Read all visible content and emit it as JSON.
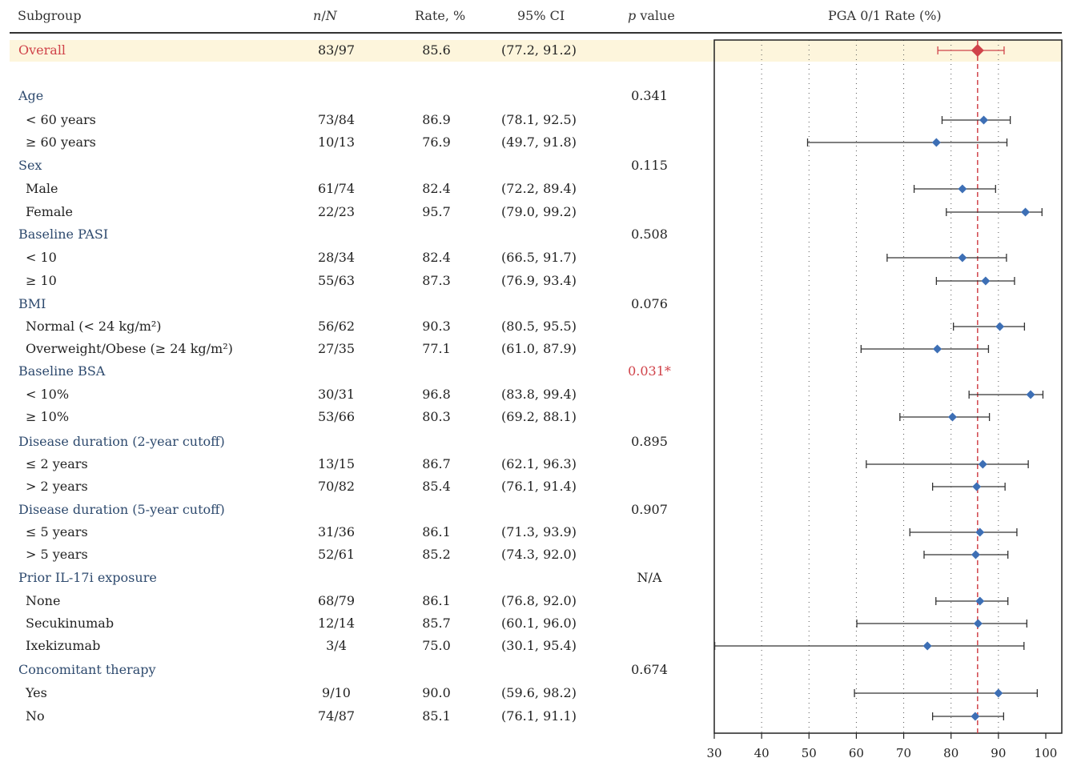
{
  "headers": {
    "subgroup": "Subgroup",
    "n_italic_n": "n",
    "n_slash": "/",
    "n_italic_N": "N",
    "rate": "Rate, %",
    "ci": "95% CI",
    "p_italic": "p",
    "p_rest": " value",
    "plot": "PGA 0/1 Rate (%)"
  },
  "colors": {
    "overall": "#d0434a",
    "marker": "#3d6fb5",
    "reference_line": "#d0434a",
    "group_label": "#2e4a6e",
    "highlight_band": "#fdf5dc"
  },
  "rows": [
    {
      "label": "Overall",
      "kind": "overall",
      "n": "83/97",
      "rate": "85.6",
      "ci": "(77.2, 91.2)",
      "p": "",
      "est": 85.6,
      "lo": 77.2,
      "hi": 91.2
    },
    {
      "label": "Age",
      "kind": "group",
      "p": "0.341"
    },
    {
      "label": "< 60 years",
      "kind": "sub",
      "n": "73/84",
      "rate": "86.9",
      "ci": "(78.1, 92.5)",
      "est": 86.9,
      "lo": 78.1,
      "hi": 92.5
    },
    {
      "label": "≥ 60 years",
      "kind": "sub",
      "n": "10/13",
      "rate": "76.9",
      "ci": "(49.7, 91.8)",
      "est": 76.9,
      "lo": 49.7,
      "hi": 91.8
    },
    {
      "label": "Sex",
      "kind": "group",
      "p": "0.115"
    },
    {
      "label": "Male",
      "kind": "sub",
      "n": "61/74",
      "rate": "82.4",
      "ci": "(72.2, 89.4)",
      "est": 82.4,
      "lo": 72.2,
      "hi": 89.4
    },
    {
      "label": "Female",
      "kind": "sub",
      "n": "22/23",
      "rate": "95.7",
      "ci": "(79.0, 99.2)",
      "est": 95.7,
      "lo": 79.0,
      "hi": 99.2
    },
    {
      "label": "Baseline PASI",
      "kind": "group",
      "p": "0.508"
    },
    {
      "label": "< 10",
      "kind": "sub",
      "n": "28/34",
      "rate": "82.4",
      "ci": "(66.5, 91.7)",
      "est": 82.4,
      "lo": 66.5,
      "hi": 91.7
    },
    {
      "label": "≥ 10",
      "kind": "sub",
      "n": "55/63",
      "rate": "87.3",
      "ci": "(76.9, 93.4)",
      "est": 87.3,
      "lo": 76.9,
      "hi": 93.4
    },
    {
      "label": "BMI",
      "kind": "group",
      "p": "0.076"
    },
    {
      "label": "Normal (< 24 kg/m²)",
      "kind": "sub",
      "n": "56/62",
      "rate": "90.3",
      "ci": "(80.5, 95.5)",
      "est": 90.3,
      "lo": 80.5,
      "hi": 95.5
    },
    {
      "label": "Overweight/Obese (≥ 24 kg/m²)",
      "kind": "sub",
      "n": "27/35",
      "rate": "77.1",
      "ci": "(61.0, 87.9)",
      "est": 77.1,
      "lo": 61.0,
      "hi": 87.9
    },
    {
      "label": "Baseline BSA",
      "kind": "group",
      "p": "0.031*",
      "p_highlight": true
    },
    {
      "label": "< 10%",
      "kind": "sub",
      "n": "30/31",
      "rate": "96.8",
      "ci": "(83.8, 99.4)",
      "est": 96.8,
      "lo": 83.8,
      "hi": 99.4
    },
    {
      "label": "≥ 10%",
      "kind": "sub",
      "n": "53/66",
      "rate": "80.3",
      "ci": "(69.2, 88.1)",
      "est": 80.3,
      "lo": 69.2,
      "hi": 88.1
    },
    {
      "label": "Disease duration (2-year cutoff)",
      "kind": "group",
      "p": "0.895"
    },
    {
      "label": "≤ 2 years",
      "kind": "sub",
      "n": "13/15",
      "rate": "86.7",
      "ci": "(62.1, 96.3)",
      "est": 86.7,
      "lo": 62.1,
      "hi": 96.3
    },
    {
      "label": "> 2 years",
      "kind": "sub",
      "n": "70/82",
      "rate": "85.4",
      "ci": "(76.1, 91.4)",
      "est": 85.4,
      "lo": 76.1,
      "hi": 91.4
    },
    {
      "label": "Disease duration (5-year cutoff)",
      "kind": "group",
      "p": "0.907"
    },
    {
      "label": "≤ 5 years",
      "kind": "sub",
      "n": "31/36",
      "rate": "86.1",
      "ci": "(71.3, 93.9)",
      "est": 86.1,
      "lo": 71.3,
      "hi": 93.9
    },
    {
      "label": "> 5 years",
      "kind": "sub",
      "n": "52/61",
      "rate": "85.2",
      "ci": "(74.3, 92.0)",
      "est": 85.2,
      "lo": 74.3,
      "hi": 92.0
    },
    {
      "label": "Prior IL-17i exposure",
      "kind": "group",
      "p": "N/A"
    },
    {
      "label": "None",
      "kind": "sub",
      "n": "68/79",
      "rate": "86.1",
      "ci": "(76.8, 92.0)",
      "est": 86.1,
      "lo": 76.8,
      "hi": 92.0
    },
    {
      "label": "Secukinumab",
      "kind": "sub",
      "n": "12/14",
      "rate": "85.7",
      "ci": "(60.1, 96.0)",
      "est": 85.7,
      "lo": 60.1,
      "hi": 96.0
    },
    {
      "label": "Ixekizumab",
      "kind": "sub",
      "n": "3/4",
      "rate": "75.0",
      "ci": "(30.1, 95.4)",
      "est": 75.0,
      "lo": 30.1,
      "hi": 95.4
    },
    {
      "label": "Concomitant therapy",
      "kind": "group",
      "p": "0.674"
    },
    {
      "label": "Yes",
      "kind": "sub",
      "n": "9/10",
      "rate": "90.0",
      "ci": "(59.6, 98.2)",
      "est": 90.0,
      "lo": 59.6,
      "hi": 98.2
    },
    {
      "label": "No",
      "kind": "sub",
      "n": "74/87",
      "rate": "85.1",
      "ci": "(76.1, 91.1)",
      "est": 85.1,
      "lo": 76.1,
      "hi": 91.1
    }
  ],
  "chart_data": {
    "type": "forest",
    "xlabel": "PGA 0/1 Rate (%)",
    "xlim": [
      30,
      100
    ],
    "xticks": [
      "30",
      "40",
      "50",
      "60",
      "70",
      "80",
      "90",
      "100"
    ],
    "grid": "dotted vertical",
    "reference_line": 85.6,
    "categories": [
      "Overall",
      "< 60 years",
      "≥ 60 years",
      "Male",
      "Female",
      "< 10",
      "≥ 10",
      "Normal (< 24 kg/m²)",
      "Overweight/Obese (≥ 24 kg/m²)",
      "< 10%",
      "≥ 10%",
      "≤ 2 years",
      "> 2 years",
      "≤ 5 years",
      "> 5 years",
      "None",
      "Secukinumab",
      "Ixekizumab",
      "Yes",
      "No"
    ],
    "estimates": [
      85.6,
      86.9,
      76.9,
      82.4,
      95.7,
      82.4,
      87.3,
      90.3,
      77.1,
      96.8,
      80.3,
      86.7,
      85.4,
      86.1,
      85.2,
      86.1,
      85.7,
      75.0,
      90.0,
      85.1
    ],
    "ci_lower": [
      77.2,
      78.1,
      49.7,
      72.2,
      79.0,
      66.5,
      76.9,
      80.5,
      61.0,
      83.8,
      69.2,
      62.1,
      76.1,
      71.3,
      74.3,
      76.8,
      60.1,
      30.1,
      59.6,
      76.1
    ],
    "ci_upper": [
      91.2,
      92.5,
      91.8,
      89.4,
      99.2,
      91.7,
      93.4,
      95.5,
      87.9,
      99.4,
      88.1,
      96.3,
      91.4,
      93.9,
      92.0,
      92.0,
      96.0,
      95.4,
      98.2,
      91.1
    ]
  }
}
